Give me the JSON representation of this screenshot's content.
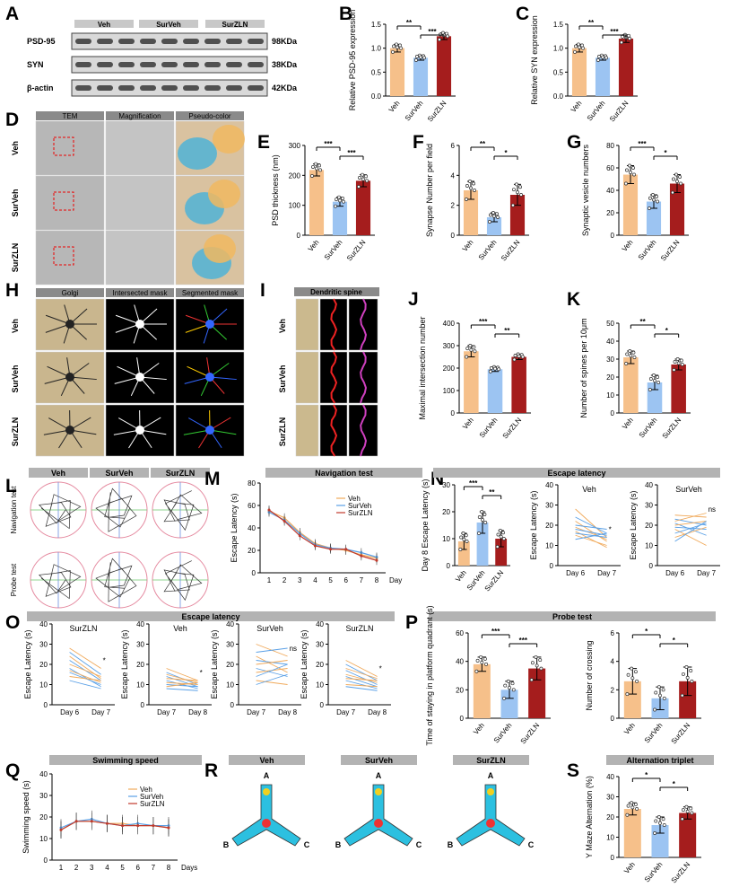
{
  "colors": {
    "veh": "#f6c08a",
    "surveh": "#9cc4f2",
    "surzln": "#a51d1d",
    "vehLine": "#f0a95a",
    "survehLine": "#5aa0e6",
    "surzlnLine": "#c0392b"
  },
  "groups": [
    "Veh",
    "SurVeh",
    "SurZLN"
  ],
  "panelA": {
    "letter": "A",
    "rows": [
      {
        "label": "PSD-95",
        "kda": "98KDa"
      },
      {
        "label": "SYN",
        "kda": "38KDa"
      },
      {
        "label": "β-actin",
        "kda": "42KDa"
      }
    ]
  },
  "panelD": {
    "letter": "D",
    "cols": [
      "TEM",
      "Magnification",
      "Pseudo-color"
    ]
  },
  "panelH": {
    "letter": "H",
    "cols": [
      "Golgi",
      "Intersected mask",
      "Segmented mask"
    ]
  },
  "panelI": {
    "letter": "I",
    "title": "Dendritic spine"
  },
  "panelL": {
    "letter": "L",
    "rows": [
      "Navigation test",
      "Probe test"
    ]
  },
  "panelR": {
    "letter": "R",
    "arms": [
      "A",
      "B",
      "C"
    ]
  },
  "chart_data": [
    {
      "id": "B",
      "type": "bar",
      "ylabel": "Relative PSD-95 expression",
      "categories": [
        "Veh",
        "SurVeh",
        "SurZLN"
      ],
      "values": [
        1.0,
        0.8,
        1.25
      ],
      "errors": [
        0.08,
        0.05,
        0.07
      ],
      "ylim": [
        0,
        1.5
      ],
      "yticks": [
        0.0,
        0.5,
        1.0,
        1.5
      ],
      "sig": [
        [
          "**",
          0,
          1
        ],
        [
          "***",
          1,
          2
        ]
      ]
    },
    {
      "id": "C",
      "type": "bar",
      "ylabel": "Relative SYN expression",
      "categories": [
        "Veh",
        "SurVeh",
        "SurZLN"
      ],
      "values": [
        1.0,
        0.8,
        1.2
      ],
      "errors": [
        0.08,
        0.05,
        0.08
      ],
      "ylim": [
        0,
        1.5
      ],
      "yticks": [
        0.0,
        0.5,
        1.0,
        1.5
      ],
      "sig": [
        [
          "**",
          0,
          1
        ],
        [
          "***",
          1,
          2
        ]
      ]
    },
    {
      "id": "E",
      "type": "bar",
      "ylabel": "PSD thickness (nm)",
      "categories": [
        "Veh",
        "SurVeh",
        "SurZLN"
      ],
      "values": [
        218,
        112,
        182
      ],
      "errors": [
        20,
        15,
        20
      ],
      "ylim": [
        0,
        300
      ],
      "yticks": [
        0,
        100,
        200,
        300
      ],
      "sig": [
        [
          "***",
          0,
          1
        ],
        [
          "***",
          1,
          2
        ]
      ]
    },
    {
      "id": "F",
      "type": "bar",
      "ylabel": "Synapse Number per field",
      "categories": [
        "Veh",
        "SurVeh",
        "SurZLN"
      ],
      "values": [
        3.0,
        1.2,
        2.7
      ],
      "errors": [
        0.6,
        0.3,
        0.7
      ],
      "ylim": [
        0,
        6
      ],
      "yticks": [
        0,
        2,
        4,
        6
      ],
      "sig": [
        [
          "**",
          0,
          1
        ],
        [
          "*",
          1,
          2
        ]
      ]
    },
    {
      "id": "G",
      "type": "bar",
      "ylabel": "Synaptic vesicle numbers",
      "categories": [
        "Veh",
        "SurVeh",
        "SurZLN"
      ],
      "values": [
        54,
        30,
        46
      ],
      "errors": [
        8,
        6,
        8
      ],
      "ylim": [
        0,
        80
      ],
      "yticks": [
        0,
        20,
        40,
        60,
        80
      ],
      "sig": [
        [
          "***",
          0,
          1
        ],
        [
          "*",
          1,
          2
        ]
      ]
    },
    {
      "id": "J",
      "type": "bar",
      "ylabel": "Maximal intersection number",
      "categories": [
        "Veh",
        "SurVeh",
        "SurZLN"
      ],
      "values": [
        275,
        195,
        250
      ],
      "errors": [
        25,
        10,
        12
      ],
      "ylim": [
        0,
        400
      ],
      "yticks": [
        0,
        100,
        200,
        300,
        400
      ],
      "sig": [
        [
          "***",
          0,
          1
        ],
        [
          "**",
          1,
          2
        ]
      ]
    },
    {
      "id": "K",
      "type": "bar",
      "ylabel": "Number of spines per 10μm",
      "categories": [
        "Veh",
        "SurVeh",
        "SurZLN"
      ],
      "values": [
        31,
        17,
        27
      ],
      "errors": [
        3.5,
        4,
        3
      ],
      "ylim": [
        0,
        50
      ],
      "yticks": [
        0,
        10,
        20,
        30,
        40,
        50
      ],
      "sig": [
        [
          "**",
          0,
          1
        ],
        [
          "*",
          1,
          2
        ]
      ]
    },
    {
      "id": "M",
      "type": "line",
      "title": "Navigation test",
      "xlabel": "Day",
      "ylabel": "Escape Latency (s)",
      "x": [
        1,
        2,
        3,
        4,
        5,
        6,
        7,
        8
      ],
      "ylim": [
        0,
        80
      ],
      "yticks": [
        0,
        20,
        40,
        60,
        80
      ],
      "series": [
        {
          "name": "Veh",
          "values": [
            55,
            49,
            36,
            26,
            22,
            20,
            16,
            13
          ]
        },
        {
          "name": "SurVeh",
          "values": [
            54,
            47,
            35,
            25,
            22,
            21,
            18,
            14
          ]
        },
        {
          "name": "SurZLN",
          "values": [
            56,
            46,
            33,
            24,
            21,
            21,
            15,
            11
          ]
        }
      ]
    },
    {
      "id": "N1",
      "type": "bar",
      "header": "Escape latency",
      "ylabel": "Day 8 Escape Latency (s)",
      "categories": [
        "Veh",
        "SurVeh",
        "SurZLN"
      ],
      "values": [
        9,
        16,
        10
      ],
      "errors": [
        3,
        4,
        3
      ],
      "ylim": [
        0,
        30
      ],
      "yticks": [
        0,
        10,
        20,
        30
      ],
      "sig": [
        [
          "***",
          0,
          1
        ],
        [
          "**",
          1,
          2
        ]
      ]
    },
    {
      "id": "N2",
      "type": "line",
      "title": "Veh",
      "ylabel": "Escape Latency (s)",
      "categories": [
        "Day 6",
        "Day 7"
      ],
      "ylim": [
        0,
        40
      ],
      "yticks": [
        0,
        10,
        20,
        30,
        40
      ],
      "mark": "*",
      "pairs": [
        [
          28,
          14
        ],
        [
          24,
          16
        ],
        [
          22,
          12
        ],
        [
          20,
          18
        ],
        [
          19,
          13
        ],
        [
          18,
          15
        ],
        [
          17,
          9
        ],
        [
          16,
          14
        ],
        [
          15,
          10
        ],
        [
          13,
          16
        ]
      ]
    },
    {
      "id": "N3",
      "type": "line",
      "title": "SurVeh",
      "ylabel": "Escape Latency (s)",
      "categories": [
        "Day 6",
        "Day 7"
      ],
      "ylim": [
        0,
        40
      ],
      "yticks": [
        0,
        10,
        20,
        30,
        40
      ],
      "mark": "ns",
      "pairs": [
        [
          25,
          24
        ],
        [
          23,
          20
        ],
        [
          22,
          26
        ],
        [
          21,
          15
        ],
        [
          20,
          22
        ],
        [
          19,
          18
        ],
        [
          18,
          10
        ],
        [
          16,
          21
        ],
        [
          14,
          19
        ],
        [
          12,
          22
        ]
      ]
    },
    {
      "id": "O1",
      "type": "line",
      "title": "SurZLN",
      "ylabel": "Escape Latency (s)",
      "categories": [
        "Day 6",
        "Day 7"
      ],
      "ylim": [
        0,
        40
      ],
      "yticks": [
        0,
        10,
        20,
        30,
        40
      ],
      "mark": "*",
      "pairs": [
        [
          28,
          18
        ],
        [
          26,
          15
        ],
        [
          24,
          13
        ],
        [
          22,
          12
        ],
        [
          20,
          14
        ],
        [
          18,
          9
        ],
        [
          17,
          11
        ],
        [
          16,
          10
        ],
        [
          14,
          12
        ],
        [
          12,
          8
        ]
      ]
    },
    {
      "id": "O2",
      "type": "line",
      "title": "Veh",
      "ylabel": "Escape Latency (s)",
      "categories": [
        "Day 7",
        "Day 8"
      ],
      "ylim": [
        0,
        40
      ],
      "yticks": [
        0,
        10,
        20,
        30,
        40
      ],
      "mark": "*",
      "pairs": [
        [
          18,
          12
        ],
        [
          16,
          10
        ],
        [
          15,
          11
        ],
        [
          14,
          9
        ],
        [
          13,
          12
        ],
        [
          12,
          8
        ],
        [
          11,
          10
        ],
        [
          10,
          9
        ],
        [
          9,
          11
        ],
        [
          8,
          7
        ]
      ]
    },
    {
      "id": "O3",
      "type": "line",
      "title": "SurVeh",
      "ylabel": "Escape Latency (s)",
      "categories": [
        "Day 7",
        "Day 8"
      ],
      "ylim": [
        0,
        40
      ],
      "yticks": [
        0,
        10,
        20,
        30,
        40
      ],
      "mark": "ns",
      "pairs": [
        [
          30,
          24
        ],
        [
          26,
          28
        ],
        [
          24,
          16
        ],
        [
          22,
          20
        ],
        [
          20,
          22
        ],
        [
          18,
          14
        ],
        [
          16,
          18
        ],
        [
          14,
          20
        ],
        [
          12,
          10
        ],
        [
          10,
          15
        ]
      ]
    },
    {
      "id": "O4",
      "type": "line",
      "title": "SurZLN",
      "ylabel": "Escape Latency (s)",
      "categories": [
        "Day 7",
        "Day 8"
      ],
      "ylim": [
        0,
        40
      ],
      "yticks": [
        0,
        10,
        20,
        30,
        40
      ],
      "mark": "*",
      "pairs": [
        [
          22,
          14
        ],
        [
          20,
          12
        ],
        [
          18,
          13
        ],
        [
          17,
          10
        ],
        [
          15,
          11
        ],
        [
          14,
          9
        ],
        [
          13,
          12
        ],
        [
          12,
          8
        ],
        [
          10,
          9
        ],
        [
          9,
          7
        ]
      ]
    },
    {
      "id": "P1",
      "type": "bar",
      "header": "Probe test",
      "ylabel": "Time of staying in platform quadrant (s)",
      "categories": [
        "Veh",
        "SurVeh",
        "SurZLN"
      ],
      "values": [
        38,
        20,
        35
      ],
      "errors": [
        5,
        6,
        8
      ],
      "ylim": [
        0,
        60
      ],
      "yticks": [
        0,
        20,
        40,
        60
      ],
      "sig": [
        [
          "***",
          0,
          1
        ],
        [
          "***",
          1,
          2
        ]
      ]
    },
    {
      "id": "P2",
      "type": "bar",
      "ylabel": "Number of crossing",
      "categories": [
        "Veh",
        "SurVeh",
        "SurZLN"
      ],
      "values": [
        2.6,
        1.4,
        2.6
      ],
      "errors": [
        0.9,
        0.8,
        1.0
      ],
      "ylim": [
        0,
        6
      ],
      "yticks": [
        0,
        2,
        4,
        6
      ],
      "sig": [
        [
          "*",
          0,
          1
        ],
        [
          "*",
          1,
          2
        ]
      ]
    },
    {
      "id": "Q",
      "type": "line",
      "title": "Swimming speed",
      "xlabel": "Days",
      "ylabel": "Swimming speed (s)",
      "x": [
        1,
        2,
        3,
        4,
        5,
        6,
        7,
        8
      ],
      "ylim": [
        0,
        40
      ],
      "yticks": [
        0,
        10,
        20,
        30,
        40
      ],
      "series": [
        {
          "name": "Veh",
          "values": [
            14,
            18,
            18,
            17,
            17,
            16,
            16,
            15
          ]
        },
        {
          "name": "SurVeh",
          "values": [
            15,
            18,
            19,
            17,
            16,
            17,
            16,
            16
          ]
        },
        {
          "name": "SurZLN",
          "values": [
            14,
            18,
            18,
            17,
            16,
            16,
            16,
            15
          ]
        }
      ]
    },
    {
      "id": "S",
      "type": "bar",
      "header": "Alternation triplet",
      "ylabel": "Y Maze Alternation (%)",
      "categories": [
        "Veh",
        "SurVeh",
        "SurZLN"
      ],
      "values": [
        24,
        16,
        22
      ],
      "errors": [
        3,
        4,
        3
      ],
      "ylim": [
        0,
        40
      ],
      "yticks": [
        0,
        10,
        20,
        30,
        40
      ],
      "sig": [
        [
          "*",
          0,
          1
        ],
        [
          "*",
          1,
          2
        ]
      ]
    }
  ]
}
